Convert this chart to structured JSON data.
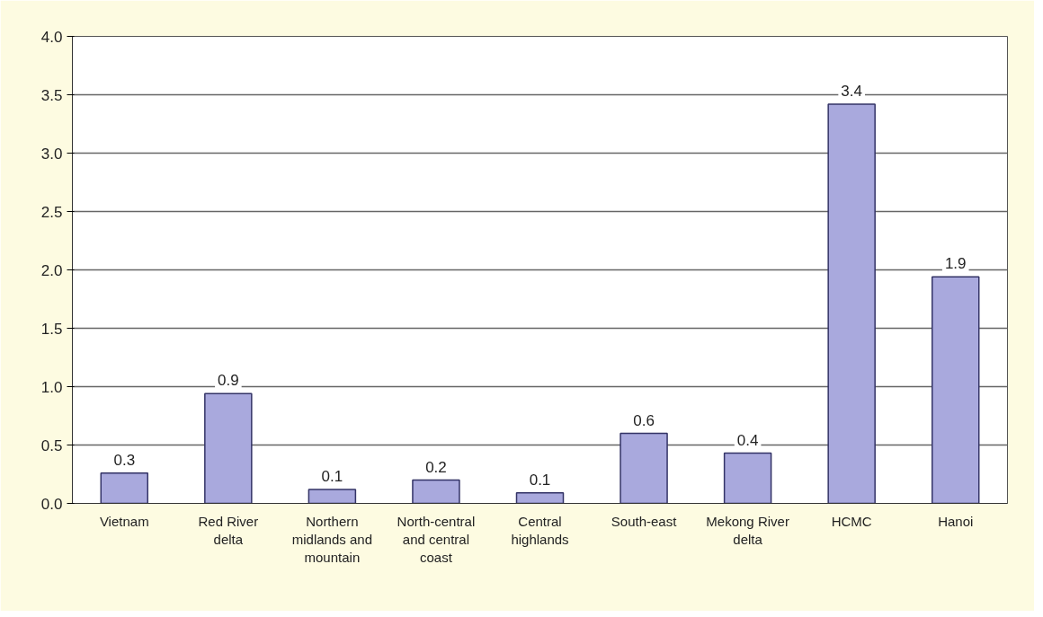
{
  "chart_data": {
    "type": "bar",
    "categories": [
      "Vietnam",
      "Red River delta",
      "Northern midlands and mountain",
      "North-central and central coast",
      "Central highlands",
      "South-east",
      "Mekong River delta",
      "HCMC",
      "Hanoi"
    ],
    "values": [
      0.26,
      0.94,
      0.12,
      0.2,
      0.09,
      0.6,
      0.43,
      3.42,
      1.94
    ],
    "value_labels": [
      "0.3",
      "0.9",
      "0.1",
      "0.2",
      "0.1",
      "0.6",
      "0.4",
      "3.4",
      "1.9"
    ],
    "color": "#a9a9dd",
    "ylim": [
      0,
      4.0
    ],
    "yticks": [
      {
        "value": 0,
        "label": "0.0"
      },
      {
        "value": 0.5,
        "label": "0.5"
      },
      {
        "value": 1.0,
        "label": "1.0"
      },
      {
        "value": 1.5,
        "label": "1.5"
      },
      {
        "value": 2.0,
        "label": "2.0"
      },
      {
        "value": 2.5,
        "label": "2.5"
      },
      {
        "value": 3.0,
        "label": "3.0"
      },
      {
        "value": 3.5,
        "label": "3.5"
      },
      {
        "value": 4.0,
        "label": "4.0"
      }
    ],
    "grid": "y"
  }
}
